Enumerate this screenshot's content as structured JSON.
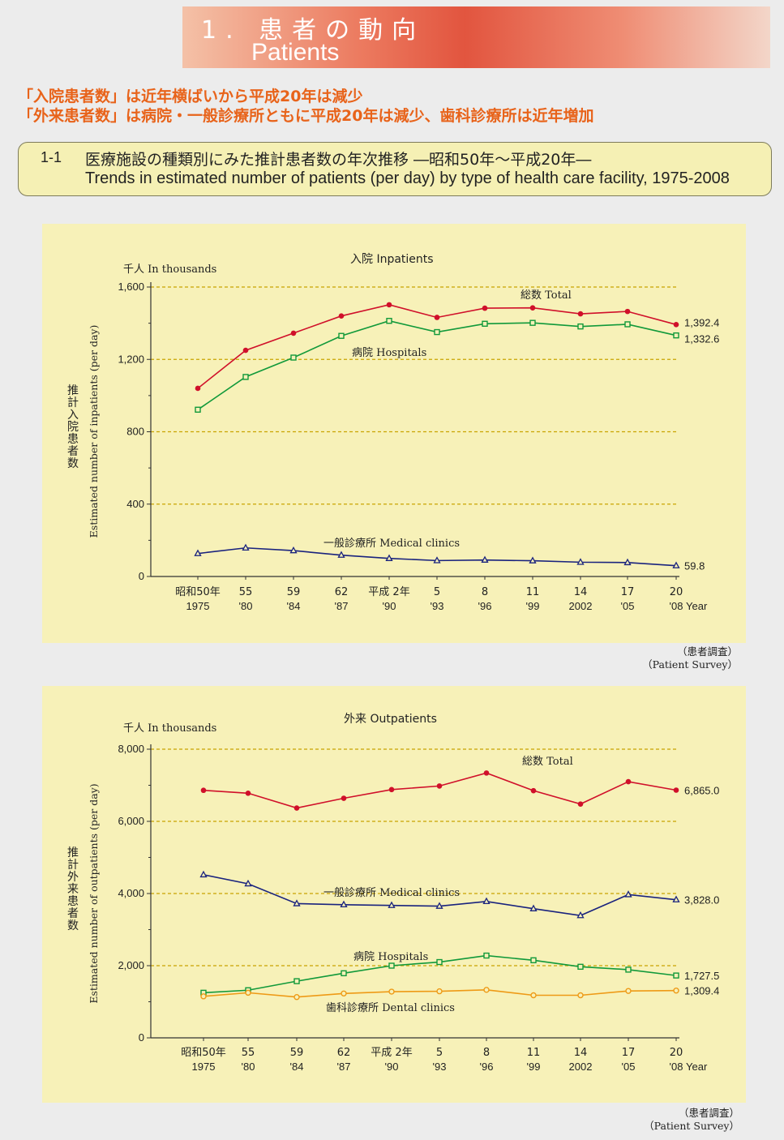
{
  "banner": {
    "title_jp": "1. 患者の動向",
    "title_en": "Patients"
  },
  "headlines": [
    "「入院患者数」は近年横ばいから平成20年は減少",
    "「外来患者数」は病院・一般診療所ともに平成20年は減少、歯科診療所は近年増加"
  ],
  "caption": {
    "number": "1-1",
    "title_jp": "医療施設の種類別にみた推計患者数の年次推移 ―昭和50年～平成20年―",
    "title_en": "Trends in estimated number of patients (per day) by type of health care facility, 1975-2008"
  },
  "chart_data": [
    {
      "type": "line",
      "title": "入院 Inpatients",
      "unit_label": "千人 In thousands",
      "ylabel_jp": "推計入院患者数",
      "ylabel_en": "Estimated number of inpatients (per day)",
      "x_year_label": "Year",
      "categories": [
        "1975",
        "1980",
        "1984",
        "1987",
        "1990",
        "1993",
        "1996",
        "1999",
        "2002",
        "2005",
        "2008"
      ],
      "tick_labels_top": [
        "昭和50年",
        "55",
        "59",
        "62",
        "平成 2年",
        "5",
        "8",
        "11",
        "14",
        "17",
        "20"
      ],
      "tick_labels_bottom": [
        "1975",
        "'80",
        "'84",
        "'87",
        "'90",
        "'93",
        "'96",
        "'99",
        "2002",
        "'05",
        "'08"
      ],
      "ylim": [
        0,
        1600
      ],
      "yticks": [
        "0",
        "400",
        "800",
        "1,200",
        "1,600"
      ],
      "grid": true,
      "series": [
        {
          "name": "総数 Total",
          "color": "#d0102a",
          "marker": "dot",
          "end_label": "1,392.4",
          "values": [
            1040,
            1250,
            1345,
            1440,
            1502,
            1432,
            1483,
            1485,
            1452,
            1465,
            1392.4
          ]
        },
        {
          "name": "病院 Hospitals",
          "color": "#11993a",
          "marker": "square",
          "end_label": "1,332.6",
          "values": [
            922,
            1103,
            1210,
            1330,
            1413,
            1351,
            1397,
            1402,
            1382,
            1394,
            1332.6
          ]
        },
        {
          "name": "一般診療所 Medical clinics",
          "color": "#1a237e",
          "marker": "triangle",
          "end_label": "59.8",
          "values": [
            127,
            158,
            143,
            118,
            100,
            88,
            91,
            87,
            79,
            77,
            59.8
          ]
        }
      ]
    },
    {
      "type": "line",
      "title": "外来 Outpatients",
      "unit_label": "千人 In thousands",
      "ylabel_jp": "推計外来患者数",
      "ylabel_en": "Estimated number of outpatients (per day)",
      "x_year_label": "Year",
      "categories": [
        "1975",
        "1980",
        "1984",
        "1987",
        "1990",
        "1993",
        "1996",
        "1999",
        "2002",
        "2005",
        "2008"
      ],
      "tick_labels_top": [
        "昭和50年",
        "55",
        "59",
        "62",
        "平成 2年",
        "5",
        "8",
        "11",
        "14",
        "17",
        "20"
      ],
      "tick_labels_bottom": [
        "1975",
        "'80",
        "'84",
        "'87",
        "'90",
        "'93",
        "'96",
        "'99",
        "2002",
        "'05",
        "'08"
      ],
      "ylim": [
        0,
        8000
      ],
      "yticks": [
        "0",
        "2,000",
        "4,000",
        "6,000",
        "8,000"
      ],
      "grid": true,
      "series": [
        {
          "name": "総数 Total",
          "color": "#d0102a",
          "marker": "dot",
          "end_label": "6,865.0",
          "values": [
            6860,
            6780,
            6370,
            6640,
            6880,
            6980,
            7340,
            6850,
            6480,
            7100,
            6865.0
          ]
        },
        {
          "name": "一般診療所 Medical clinics",
          "color": "#1a237e",
          "marker": "triangle",
          "end_label": "3,828.0",
          "values": [
            4520,
            4270,
            3720,
            3690,
            3670,
            3650,
            3780,
            3580,
            3390,
            3970,
            3828.0
          ]
        },
        {
          "name": "病院 Hospitals",
          "color": "#11993a",
          "marker": "square",
          "end_label": "1,727.5",
          "values": [
            1250,
            1320,
            1570,
            1790,
            2000,
            2100,
            2280,
            2150,
            1970,
            1890,
            1727.5
          ]
        },
        {
          "name": "歯科診療所 Dental clinics",
          "color": "#ee9a16",
          "marker": "circle",
          "end_label": "1,309.4",
          "values": [
            1150,
            1250,
            1130,
            1230,
            1280,
            1290,
            1330,
            1180,
            1180,
            1300,
            1309.4
          ]
        }
      ]
    }
  ],
  "source": {
    "jp": "（患者調査）",
    "en": "（Patient Survey）"
  }
}
